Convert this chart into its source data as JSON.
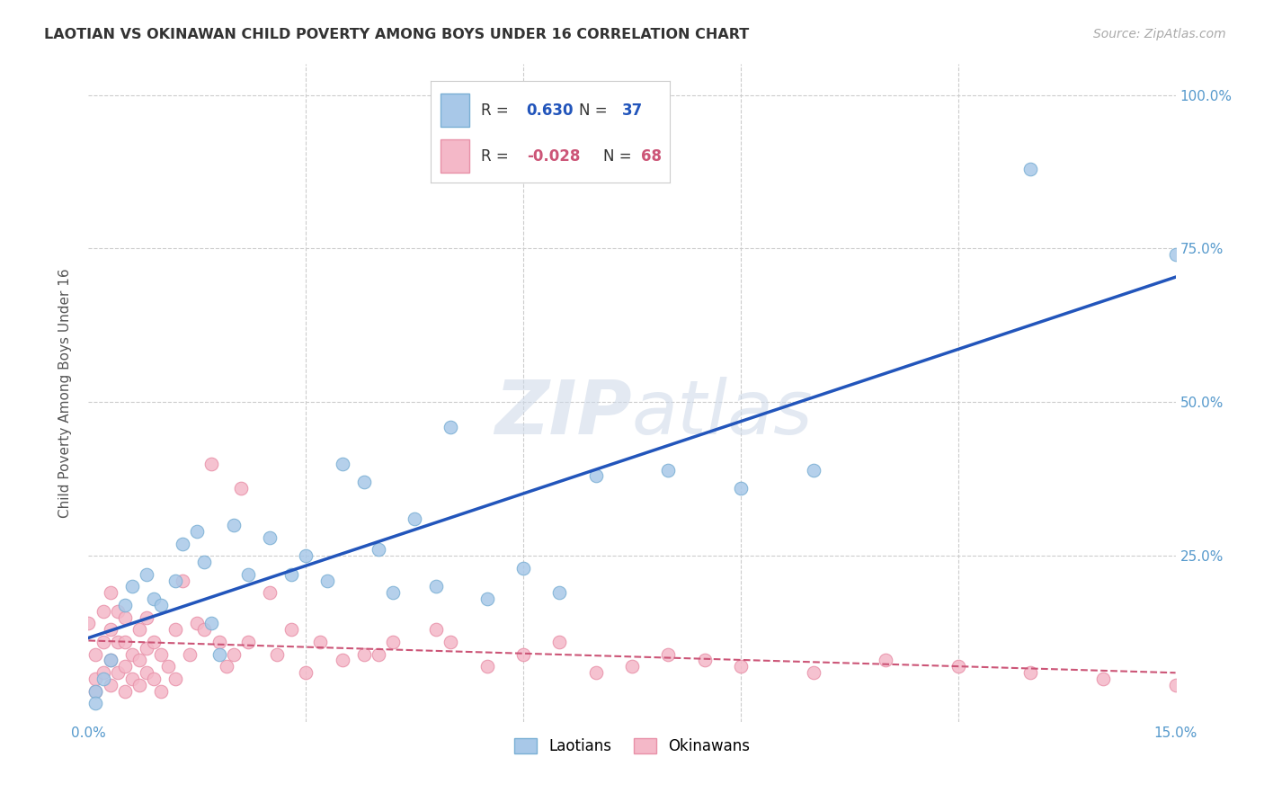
{
  "title": "LAOTIAN VS OKINAWAN CHILD POVERTY AMONG BOYS UNDER 16 CORRELATION CHART",
  "source": "Source: ZipAtlas.com",
  "ylabel": "Child Poverty Among Boys Under 16",
  "xlim": [
    0.0,
    0.15
  ],
  "ylim": [
    -0.02,
    1.05
  ],
  "laotian_color": "#a8c8e8",
  "laotian_edge_color": "#7aafd4",
  "okinawan_color": "#f4b8c8",
  "okinawan_edge_color": "#e890a8",
  "regression_laotian_color": "#2255bb",
  "regression_okinawan_color": "#cc5577",
  "R_laotian": 0.63,
  "N_laotian": 37,
  "R_okinawan": -0.028,
  "N_okinawan": 68,
  "watermark": "ZIPatlas",
  "background_color": "#ffffff",
  "grid_color": "#cccccc",
  "tick_color": "#5599cc",
  "laotian_x": [
    0.001,
    0.002,
    0.003,
    0.005,
    0.006,
    0.008,
    0.009,
    0.01,
    0.012,
    0.013,
    0.015,
    0.016,
    0.017,
    0.018,
    0.02,
    0.022,
    0.025,
    0.028,
    0.03,
    0.033,
    0.035,
    0.038,
    0.04,
    0.042,
    0.045,
    0.048,
    0.05,
    0.055,
    0.06,
    0.065,
    0.07,
    0.08,
    0.09,
    0.1,
    0.13,
    0.001,
    0.15
  ],
  "laotian_y": [
    0.03,
    0.05,
    0.08,
    0.17,
    0.2,
    0.22,
    0.18,
    0.17,
    0.21,
    0.27,
    0.29,
    0.24,
    0.14,
    0.09,
    0.3,
    0.22,
    0.28,
    0.22,
    0.25,
    0.21,
    0.4,
    0.37,
    0.26,
    0.19,
    0.31,
    0.2,
    0.46,
    0.18,
    0.23,
    0.19,
    0.38,
    0.39,
    0.36,
    0.39,
    0.88,
    0.01,
    0.74
  ],
  "okinawan_x": [
    0.0,
    0.001,
    0.001,
    0.001,
    0.002,
    0.002,
    0.002,
    0.003,
    0.003,
    0.003,
    0.003,
    0.004,
    0.004,
    0.004,
    0.005,
    0.005,
    0.005,
    0.005,
    0.006,
    0.006,
    0.007,
    0.007,
    0.007,
    0.008,
    0.008,
    0.008,
    0.009,
    0.009,
    0.01,
    0.01,
    0.011,
    0.012,
    0.012,
    0.013,
    0.014,
    0.015,
    0.016,
    0.017,
    0.018,
    0.02,
    0.021,
    0.025,
    0.03,
    0.035,
    0.04,
    0.05,
    0.06,
    0.07,
    0.08,
    0.09,
    0.1,
    0.11,
    0.12,
    0.13,
    0.14,
    0.15,
    0.019,
    0.022,
    0.026,
    0.028,
    0.032,
    0.038,
    0.042,
    0.048,
    0.055,
    0.065,
    0.075,
    0.085
  ],
  "okinawan_y": [
    0.14,
    0.03,
    0.05,
    0.09,
    0.06,
    0.11,
    0.16,
    0.04,
    0.08,
    0.13,
    0.19,
    0.06,
    0.11,
    0.16,
    0.03,
    0.07,
    0.11,
    0.15,
    0.05,
    0.09,
    0.04,
    0.08,
    0.13,
    0.06,
    0.1,
    0.15,
    0.05,
    0.11,
    0.03,
    0.09,
    0.07,
    0.05,
    0.13,
    0.21,
    0.09,
    0.14,
    0.13,
    0.4,
    0.11,
    0.09,
    0.36,
    0.19,
    0.06,
    0.08,
    0.09,
    0.11,
    0.09,
    0.06,
    0.09,
    0.07,
    0.06,
    0.08,
    0.07,
    0.06,
    0.05,
    0.04,
    0.07,
    0.11,
    0.09,
    0.13,
    0.11,
    0.09,
    0.11,
    0.13,
    0.07,
    0.11,
    0.07,
    0.08
  ]
}
